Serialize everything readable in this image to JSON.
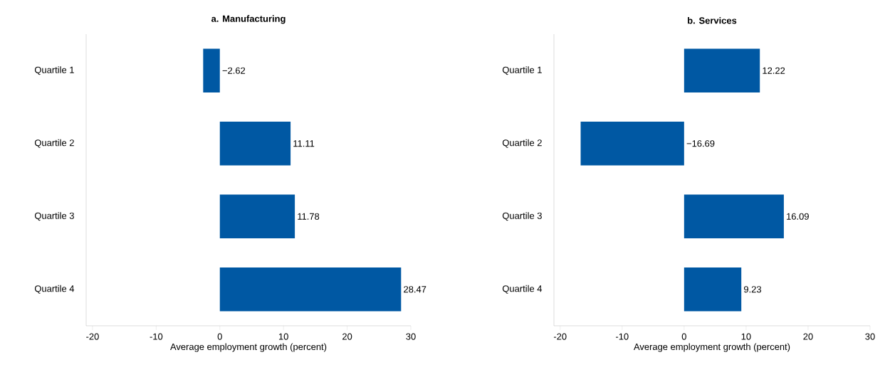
{
  "chart_data": [
    {
      "type": "bar",
      "orientation": "horizontal",
      "title": "a. Manufacturing",
      "xlabel": "Average employment growth (percent)",
      "categories": [
        "Quartile 1",
        "Quartile 2",
        "Quartile 3",
        "Quartile 4"
      ],
      "values": [
        -2.62,
        11.11,
        11.78,
        28.47
      ],
      "value_labels": [
        "−2.62",
        "11.11",
        "11.78",
        "28.47"
      ],
      "color": "#0058a3",
      "xlim": [
        -21,
        30
      ],
      "xticks": [
        -20,
        -10,
        0,
        10,
        20,
        30
      ]
    },
    {
      "type": "bar",
      "orientation": "horizontal",
      "title": "b. Services",
      "xlabel": "Average employment growth (percent)",
      "categories": [
        "Quartile 1",
        "Quartile 2",
        "Quartile 3",
        "Quartile 4"
      ],
      "values": [
        12.22,
        -16.69,
        16.09,
        9.23
      ],
      "value_labels": [
        "12.22",
        "−16.69",
        "16.09",
        "9.23"
      ],
      "color": "#0058a3",
      "xlim": [
        -21,
        30
      ],
      "xticks": [
        -20,
        -10,
        0,
        10,
        20,
        30
      ]
    }
  ]
}
